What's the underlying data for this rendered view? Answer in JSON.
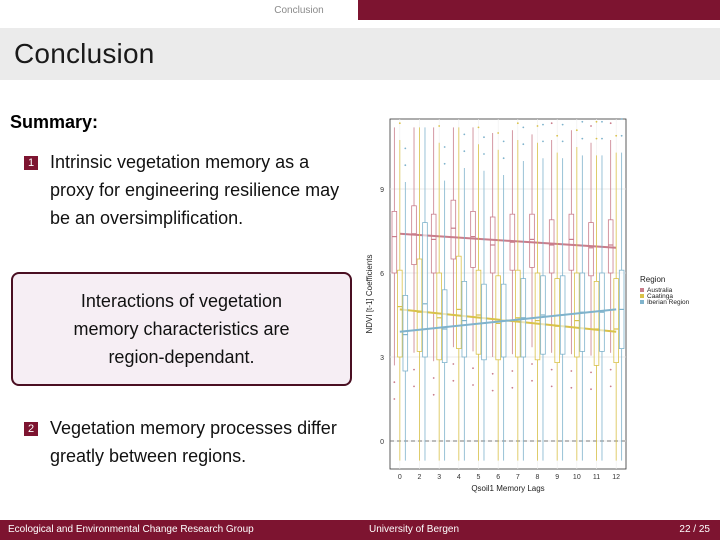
{
  "nav": {
    "section": "Conclusion"
  },
  "title": "Conclusion",
  "summary": {
    "heading": "Summary",
    "colon": ":"
  },
  "items": [
    {
      "number": "1",
      "text": "Intrinsic vegetation memory as a proxy for engineering resilience may be an oversimplification."
    },
    {
      "number": "2",
      "text": "Vegetation memory processes differ greatly between regions."
    }
  ],
  "callout": {
    "text": "Interactions of vegetation memory characteristics are region-dependant."
  },
  "footer": {
    "group": "Ecological and Environmental Change Research Group",
    "institution": "University of Bergen",
    "page": "22 / 25"
  },
  "colors": {
    "brand": "#7d1430",
    "callout_border": "#4a0f22",
    "callout_bg": "#f6eef4"
  },
  "chart_data": {
    "type": "box",
    "xlabel": "Qsoil1 Memory Lags",
    "ylabel": "NDVI [t-1] Coefficients",
    "categories": [
      "0",
      "2",
      "3",
      "4",
      "5",
      "6",
      "7",
      "8",
      "9",
      "10",
      "11",
      "12"
    ],
    "yticks": [
      "0",
      "3",
      "6",
      "9"
    ],
    "ylim": [
      -1,
      11.5
    ],
    "grid": true,
    "legend": {
      "title": "Region",
      "position": "right",
      "entries": [
        "Australia",
        "Caatinga",
        "Iberian Region"
      ]
    },
    "series": [
      {
        "name": "Australia",
        "color": "#c97d8b",
        "trend": [
          7.4,
          6.9
        ],
        "median": [
          7.3,
          7.4,
          7.2,
          7.6,
          7.3,
          7.0,
          7.1,
          7.2,
          7.0,
          7.2,
          6.9,
          7.0
        ],
        "q1": [
          6.0,
          6.3,
          6.0,
          6.5,
          6.2,
          6.0,
          6.1,
          6.2,
          6.0,
          6.1,
          5.9,
          6.0
        ],
        "q3": [
          8.2,
          8.4,
          8.1,
          8.6,
          8.2,
          8.0,
          8.1,
          8.1,
          7.9,
          8.1,
          7.8,
          7.9
        ]
      },
      {
        "name": "Caatinga",
        "color": "#d9c24a",
        "trend": [
          4.7,
          3.9
        ],
        "median": [
          4.8,
          4.6,
          4.4,
          4.7,
          4.5,
          4.2,
          4.4,
          4.3,
          4.1,
          4.3,
          4.0,
          4.0
        ],
        "q1": [
          3.0,
          3.2,
          2.9,
          3.3,
          3.1,
          2.9,
          3.0,
          2.9,
          2.8,
          3.0,
          2.7,
          2.8
        ],
        "q3": [
          6.1,
          6.5,
          6.0,
          6.6,
          6.1,
          5.9,
          6.1,
          6.0,
          5.8,
          6.0,
          5.7,
          5.8
        ]
      },
      {
        "name": "Iberian Region",
        "color": "#7fb3cc",
        "trend": [
          3.9,
          4.7
        ],
        "median": [
          3.8,
          4.9,
          4.0,
          4.3,
          4.2,
          4.3,
          4.4,
          4.5,
          4.5,
          4.6,
          4.6,
          4.7
        ],
        "q1": [
          2.5,
          3.0,
          2.8,
          3.0,
          2.9,
          3.0,
          3.0,
          3.1,
          3.1,
          3.2,
          3.2,
          3.3
        ],
        "q3": [
          5.2,
          7.8,
          5.4,
          5.7,
          5.6,
          5.6,
          5.8,
          5.9,
          5.9,
          6.0,
          6.0,
          6.1
        ]
      }
    ]
  }
}
